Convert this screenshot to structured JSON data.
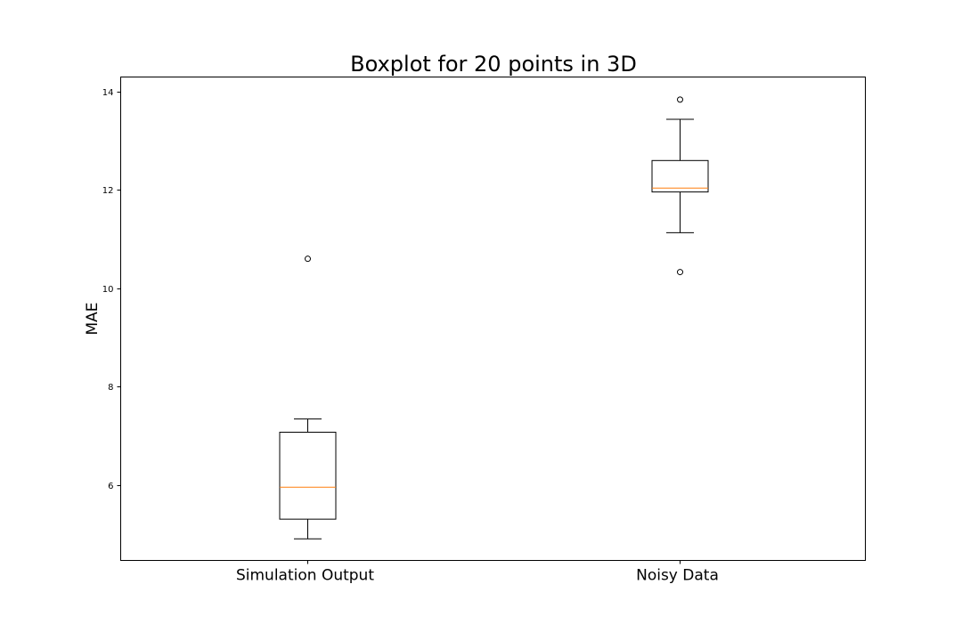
{
  "chart_data": {
    "type": "boxplot",
    "title": "Boxplot for 20 points in 3D",
    "xlabel": "",
    "ylabel": "MAE",
    "categories": [
      "Simulation Output",
      "Noisy Data"
    ],
    "ylim": [
      4.46,
      14.3
    ],
    "yticks": [
      6,
      8,
      10,
      12,
      14
    ],
    "grid": false,
    "colors": {
      "box": "#000000",
      "median": "#ff7f0e",
      "flier": "#000000"
    },
    "boxes": [
      {
        "category": "Simulation Output",
        "whisker_low": 4.9,
        "q1": 5.3,
        "median": 5.95,
        "q3": 7.07,
        "whisker_high": 7.34,
        "outliers": [
          10.6
        ]
      },
      {
        "category": "Noisy Data",
        "whisker_low": 11.13,
        "q1": 11.96,
        "median": 12.04,
        "q3": 12.6,
        "whisker_high": 13.44,
        "outliers": [
          13.84,
          10.33
        ]
      }
    ]
  }
}
